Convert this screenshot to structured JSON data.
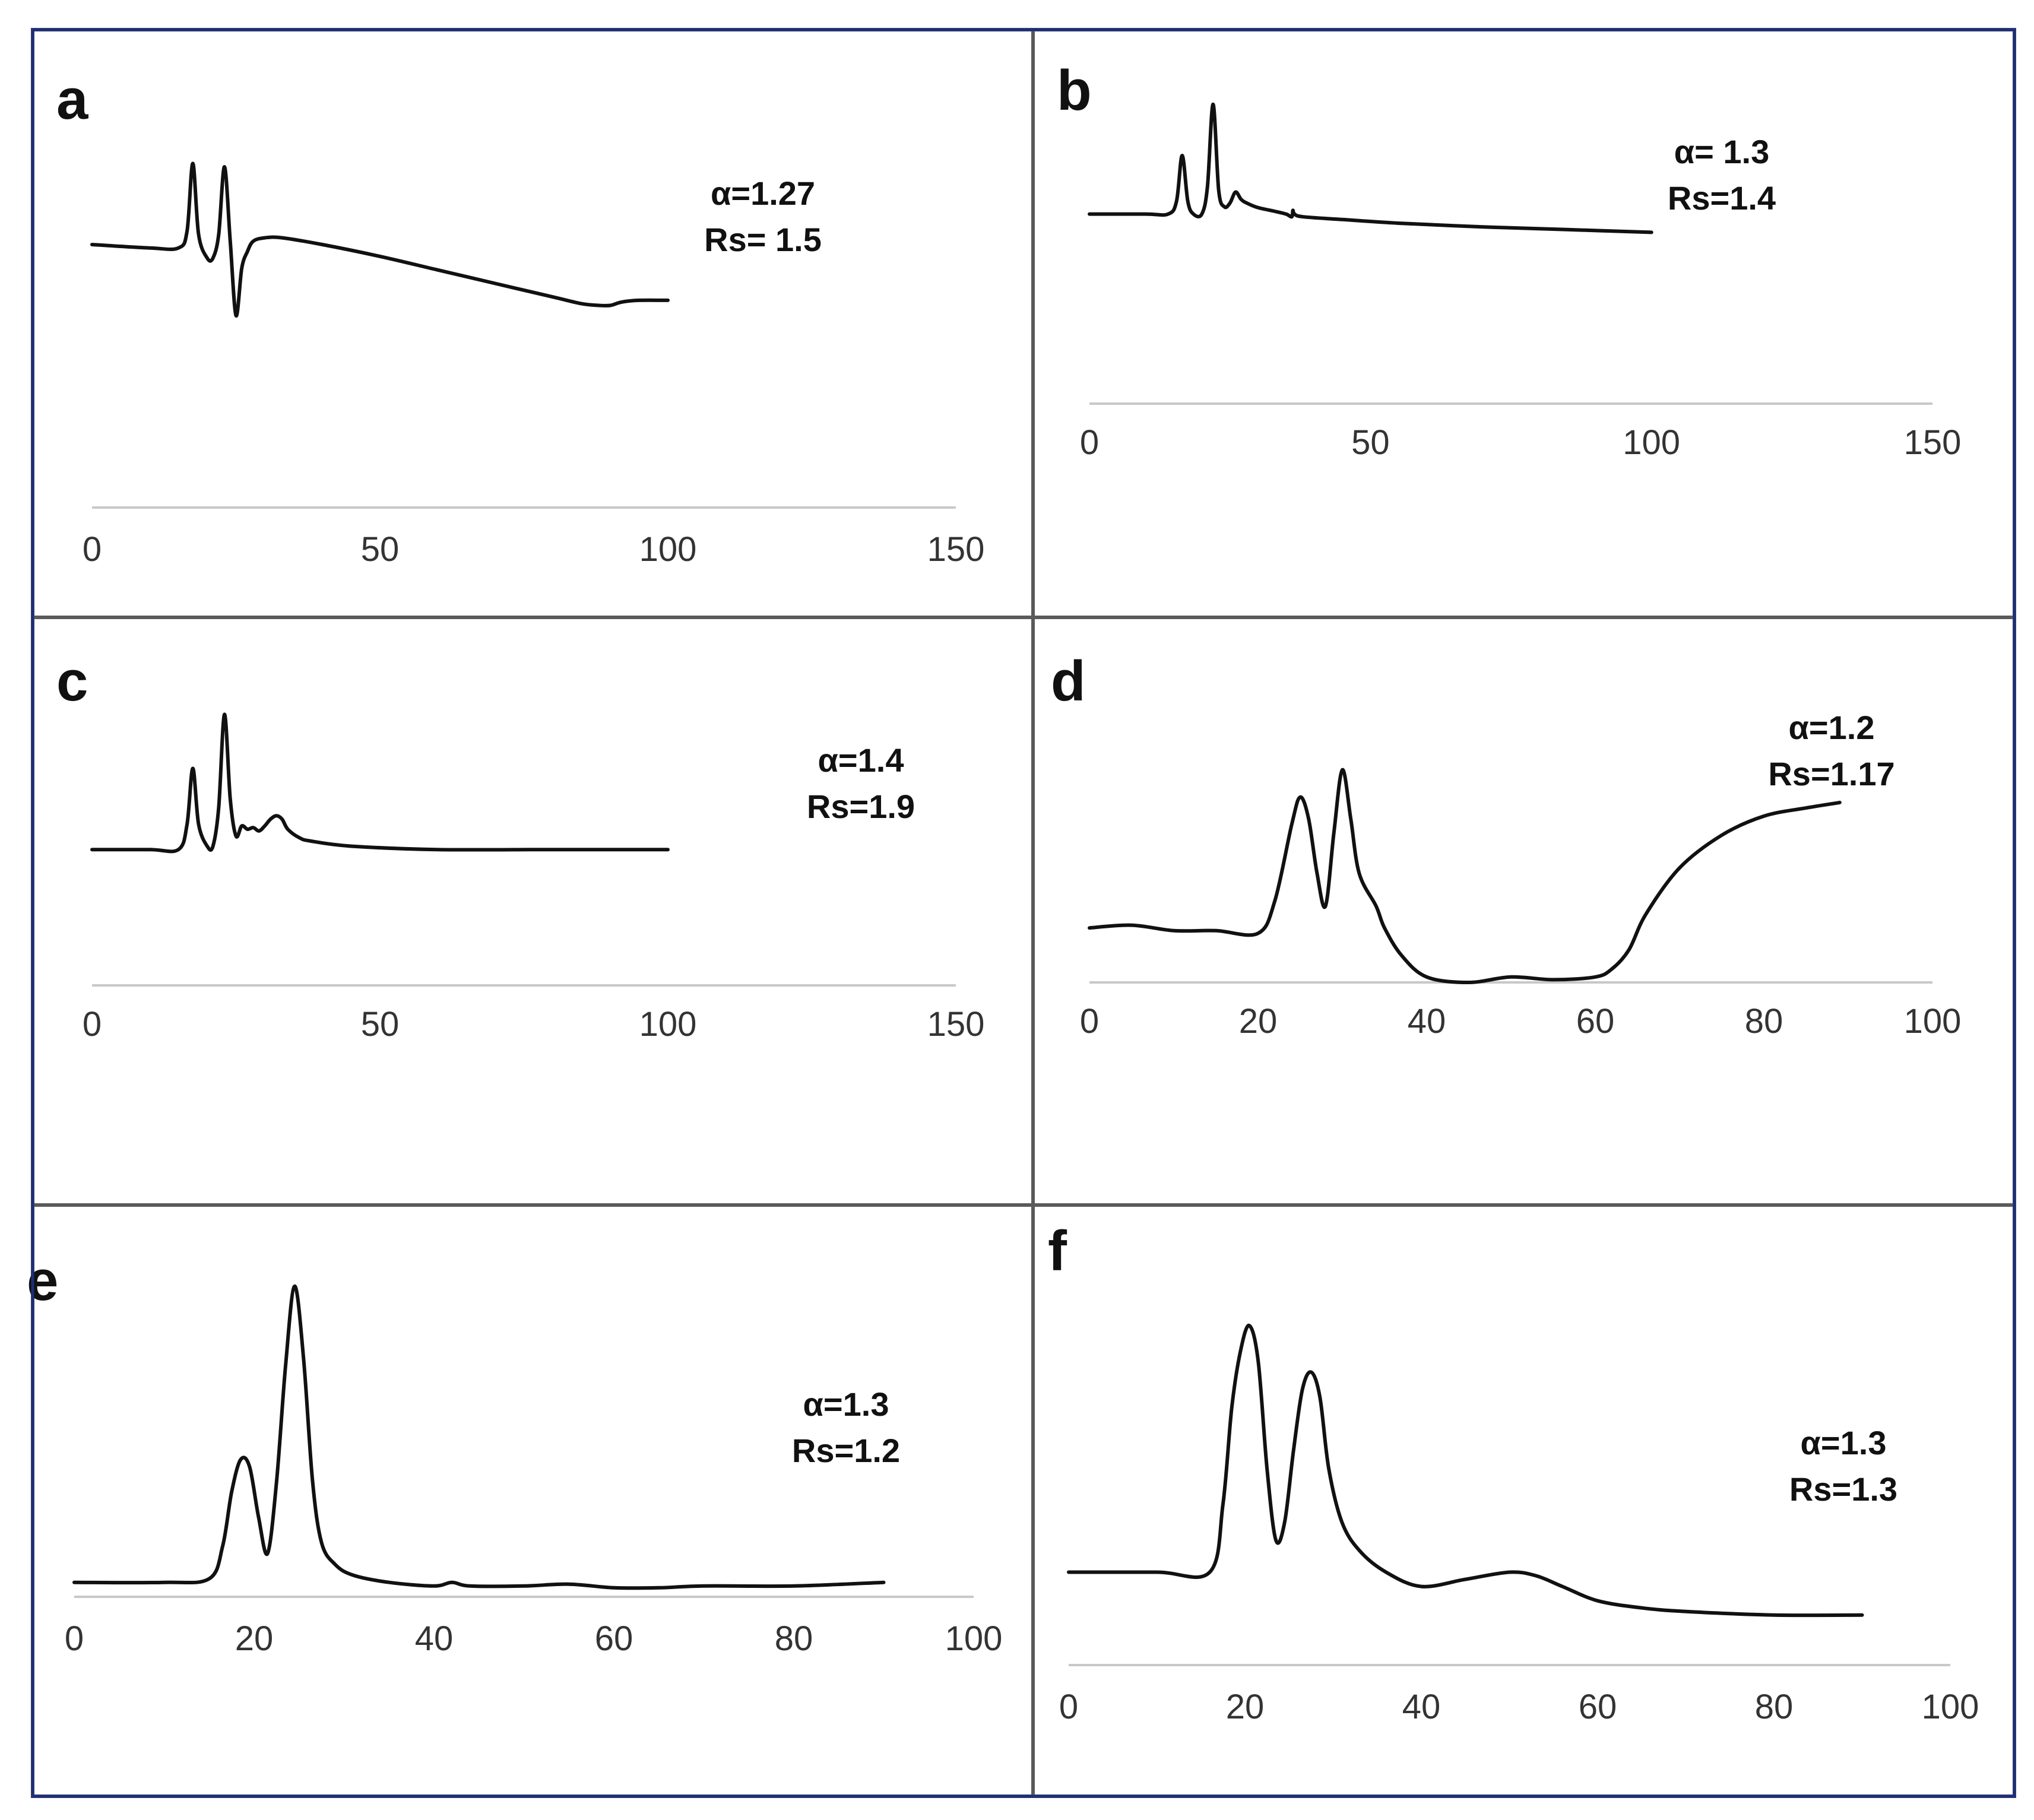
{
  "chart_data": [
    {
      "panel": "a",
      "type": "line",
      "annotations": [
        "α=1.27",
        "Rs= 1.5"
      ],
      "xlim": [
        0,
        150
      ],
      "xticks": [
        0,
        50,
        100,
        150
      ],
      "x": [
        0,
        10,
        15,
        16.5,
        17.5,
        18.5,
        20,
        21,
        22,
        23,
        24,
        25,
        26,
        27,
        28,
        30,
        33,
        40,
        50,
        60,
        70,
        80,
        85,
        88,
        90,
        92,
        95,
        100
      ],
      "y": [
        0.21,
        0.2,
        0.2,
        0.25,
        0.45,
        0.24,
        0.17,
        0.17,
        0.24,
        0.44,
        0.22,
        0.0,
        0.14,
        0.19,
        0.22,
        0.23,
        0.23,
        0.21,
        0.175,
        0.135,
        0.095,
        0.055,
        0.035,
        0.03,
        0.03,
        0.04,
        0.045,
        0.045
      ],
      "ylim": [
        -0.05,
        0.6
      ]
    },
    {
      "panel": "b",
      "type": "line",
      "annotations": [
        "α= 1.3",
        "Rs=1.4"
      ],
      "xlim": [
        0,
        150
      ],
      "xticks": [
        0,
        50,
        100,
        150
      ],
      "x": [
        0,
        10,
        14,
        15.5,
        16.5,
        17.5,
        18.5,
        20,
        21,
        22,
        23,
        24,
        25,
        26,
        27,
        28,
        30,
        33,
        35,
        36,
        36.2,
        36.5,
        38,
        45,
        55,
        70,
        85,
        100
      ],
      "y": [
        0.2,
        0.2,
        0.2,
        0.27,
        0.52,
        0.27,
        0.2,
        0.2,
        0.35,
        0.8,
        0.33,
        0.24,
        0.26,
        0.32,
        0.28,
        0.26,
        0.235,
        0.215,
        0.2,
        0.185,
        0.22,
        0.2,
        0.185,
        0.17,
        0.15,
        0.13,
        0.115,
        0.1
      ],
      "ylim": [
        -0.35,
        0.9
      ]
    },
    {
      "panel": "c",
      "type": "line",
      "annotations": [
        "α=1.4",
        "Rs=1.9"
      ],
      "xlim": [
        0,
        150
      ],
      "xticks": [
        0,
        50,
        100,
        150
      ],
      "x": [
        0,
        10,
        15,
        16.5,
        17.5,
        18.5,
        20,
        21,
        22,
        23,
        24,
        25,
        26,
        27,
        28,
        29,
        30,
        31,
        32,
        33,
        34,
        36,
        38,
        45,
        60,
        80,
        100
      ],
      "y": [
        0.1,
        0.1,
        0.1,
        0.25,
        0.58,
        0.25,
        0.12,
        0.12,
        0.35,
        0.9,
        0.4,
        0.18,
        0.24,
        0.22,
        0.23,
        0.21,
        0.24,
        0.28,
        0.3,
        0.28,
        0.22,
        0.17,
        0.15,
        0.12,
        0.1,
        0.1,
        0.1
      ],
      "ylim": [
        -0.3,
        1.0
      ]
    },
    {
      "panel": "d",
      "type": "line",
      "annotations": [
        "α=1.2",
        "Rs=1.17"
      ],
      "xlim": [
        0,
        100
      ],
      "xticks": [
        0,
        20,
        40,
        60,
        80,
        100
      ],
      "x": [
        0,
        5,
        10,
        15,
        20,
        22,
        24,
        25,
        26,
        27,
        28,
        29,
        30,
        31,
        32,
        34,
        35,
        37,
        40,
        45,
        50,
        55,
        60,
        62,
        64,
        66,
        70,
        75,
        80,
        85,
        89
      ],
      "y": [
        0.2,
        0.21,
        0.19,
        0.19,
        0.18,
        0.3,
        0.58,
        0.68,
        0.6,
        0.4,
        0.28,
        0.55,
        0.78,
        0.6,
        0.4,
        0.28,
        0.2,
        0.1,
        0.02,
        0.0,
        0.02,
        0.01,
        0.02,
        0.05,
        0.12,
        0.25,
        0.42,
        0.54,
        0.61,
        0.64,
        0.66
      ],
      "ylim": [
        0,
        0.98
      ]
    },
    {
      "panel": "e",
      "type": "line",
      "annotations": [
        "α=1.3",
        "Rs=1.2"
      ],
      "xlim": [
        0,
        100
      ],
      "xticks": [
        0,
        20,
        40,
        60,
        80,
        100
      ],
      "x": [
        0,
        10,
        15,
        16.5,
        17.5,
        18.5,
        19.5,
        20.5,
        21.5,
        22.5,
        23.5,
        24.5,
        25.5,
        26.5,
        27.5,
        29,
        31,
        35,
        40,
        42,
        44,
        50,
        55,
        60,
        65,
        70,
        80,
        90
      ],
      "y": [
        0.02,
        0.02,
        0.03,
        0.12,
        0.27,
        0.36,
        0.34,
        0.2,
        0.1,
        0.3,
        0.62,
        0.84,
        0.64,
        0.3,
        0.13,
        0.07,
        0.04,
        0.02,
        0.01,
        0.02,
        0.01,
        0.01,
        0.015,
        0.005,
        0.005,
        0.01,
        0.01,
        0.02
      ],
      "ylim": [
        -0.02,
        0.95
      ]
    },
    {
      "panel": "f",
      "type": "line",
      "annotations": [
        "α=1.3",
        "Rs=1.3"
      ],
      "xlim": [
        0,
        100
      ],
      "xticks": [
        0,
        20,
        40,
        60,
        80,
        100
      ],
      "x": [
        0,
        10,
        16,
        17.5,
        18.5,
        19.5,
        20.5,
        21.5,
        22.5,
        23.5,
        24.5,
        25.5,
        26.5,
        27.5,
        28.5,
        29.5,
        31,
        33,
        36,
        40,
        45,
        50,
        53,
        56,
        60,
        65,
        70,
        80,
        90
      ],
      "y": [
        0.16,
        0.16,
        0.16,
        0.35,
        0.62,
        0.78,
        0.85,
        0.75,
        0.45,
        0.25,
        0.3,
        0.5,
        0.67,
        0.72,
        0.65,
        0.45,
        0.3,
        0.22,
        0.16,
        0.12,
        0.14,
        0.16,
        0.15,
        0.12,
        0.08,
        0.06,
        0.05,
        0.04,
        0.04
      ],
      "ylim": [
        -0.1,
        0.98
      ]
    }
  ]
}
